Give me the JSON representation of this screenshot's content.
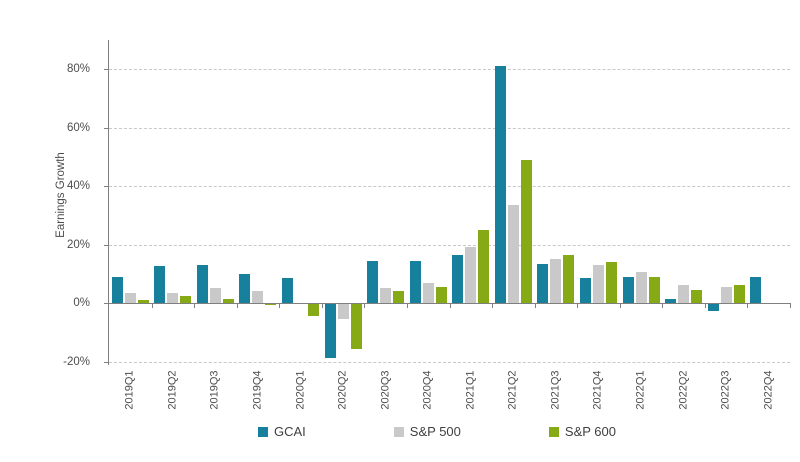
{
  "chart_data": {
    "type": "bar",
    "title": "",
    "ylabel": "Earnings Growth",
    "xlabel": "",
    "ylim": [
      -22,
      90
    ],
    "grid": "horizontal-dashed",
    "legend_position": "bottom-center",
    "categories": [
      "2019Q1",
      "2019Q2",
      "2019Q3",
      "2019Q4",
      "2020Q1",
      "2020Q2",
      "2020Q3",
      "2020Q4",
      "2021Q1",
      "2021Q2",
      "2021Q3",
      "2021Q4",
      "2022Q1",
      "2022Q2",
      "2022Q3",
      "2022Q4"
    ],
    "yticks": [
      {
        "label": "80%",
        "value": 80
      },
      {
        "label": "60%",
        "value": 60
      },
      {
        "label": "40%",
        "value": 40
      },
      {
        "label": "20%",
        "value": 20
      },
      {
        "label": "0%",
        "value": 0
      },
      {
        "label": "-20%",
        "value": -20
      }
    ],
    "series": [
      {
        "name": "GCAI",
        "color": "#17809D",
        "values": [
          9,
          12.5,
          13,
          10,
          8.5,
          -18.5,
          14.5,
          14.5,
          16.5,
          81,
          13.5,
          8.5,
          9,
          1.5,
          -2.5,
          9
        ]
      },
      {
        "name": "S&P 500",
        "color": "#C9C9C9",
        "values": [
          3.5,
          3.5,
          5,
          4,
          0,
          -5,
          5,
          7,
          19,
          33.5,
          15,
          13,
          10.5,
          6,
          5.5,
          null
        ]
      },
      {
        "name": "S&P 600",
        "color": "#86A916",
        "values": [
          1,
          2.5,
          1.5,
          -0.5,
          -4,
          -15.5,
          4,
          5.5,
          25,
          49,
          16.5,
          14,
          9,
          4.5,
          6,
          null
        ]
      }
    ],
    "axis_colors": {
      "grid": "#C9C9C9",
      "axis": "#7F7F7F",
      "text": "#4D4D4D"
    }
  }
}
